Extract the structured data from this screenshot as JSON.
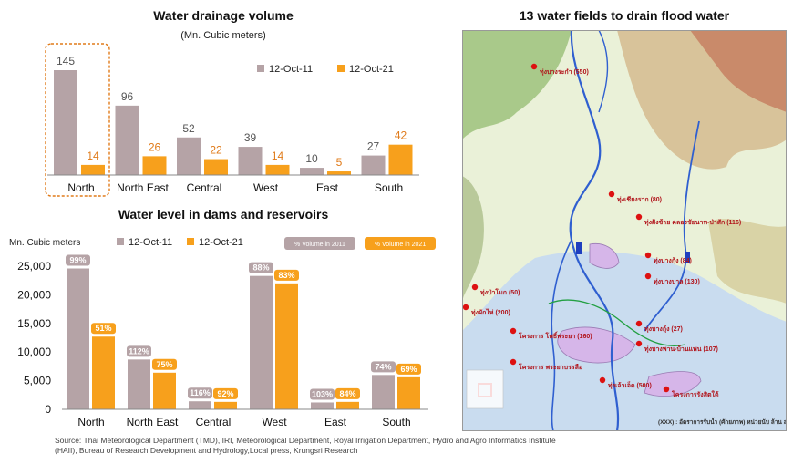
{
  "charts": [
    {
      "title": "Water drainage volume",
      "subtitle": "(Mn. Cubic meters)",
      "chart_data": {
        "type": "bar",
        "title": "Water drainage volume",
        "subtitle": "(Mn. Cubic meters)",
        "categories": [
          "North",
          "North East",
          "Central",
          "West",
          "East",
          "South"
        ],
        "series": [
          {
            "name": "12-Oct-11",
            "values": [
              145,
              96,
              52,
              39,
              10,
              27
            ],
            "color": "#b5a3a6"
          },
          {
            "name": "12-Oct-21",
            "values": [
              14,
              26,
              22,
              14,
              5,
              42
            ],
            "color": "#f7a01c"
          }
        ],
        "highlight_category": "North",
        "legend": "top-right",
        "grid": false
      }
    },
    {
      "title": "Water level in dams and reservoirs",
      "ylabel": "Mn. Cubic meters",
      "chart_data": {
        "type": "bar",
        "title": "Water level in dams and reservoirs",
        "ylabel": "Mn. Cubic meters",
        "categories": [
          "North",
          "North East",
          "Central",
          "West",
          "East",
          "South"
        ],
        "series": [
          {
            "name": "12-Oct-11",
            "values": [
              24600,
              8700,
              1400,
              23300,
              1200,
              6000
            ],
            "labels": [
              "99%",
              "112%",
              "116%",
              "88%",
              "103%",
              "74%"
            ],
            "color": "#b5a3a6"
          },
          {
            "name": "12-Oct-21",
            "values": [
              12700,
              6400,
              1300,
              22000,
              1300,
              5600
            ],
            "labels": [
              "51%",
              "75%",
              "92%",
              "83%",
              "84%",
              "69%"
            ],
            "color": "#f7a01c"
          }
        ],
        "label_legend": [
          "% Volume in 2011",
          "% Volume in 2021"
        ],
        "ylim": [
          0,
          25000
        ],
        "yticks": [
          "0",
          "5,000",
          "10,000",
          "15,000",
          "20,000",
          "25,000"
        ],
        "legend": "top",
        "grid": false
      }
    }
  ],
  "map": {
    "title": "13 water fields to drain flood water",
    "labels": [
      "ทุ่งบางระกำ (550)",
      "ทุ่งเชียงราก (80)",
      "ทุ่งฝั่งซ้าย คลองชัยนาท-ป่าสัก (116)",
      "ทุ่งป่าโมก (50)",
      "ทุ่งบางกุ้ง (84)",
      "ทุ่งบางบาล (130)",
      "ทุ่งผักไห่ (200)",
      "โครงการ โพธิ์พระยา (160)",
      "ทุ่งบางกุ้ง (27)",
      "ทุ่งบางพาน-บ้านแพน (107)",
      "โครงการ พระยาบรรลือ",
      "ทุ่งเจ้าเจ็ด (500)",
      "โครงการรังสิตใต้",
      "(XXX) : อัตราการรับน้ำ (ศักยภาพ) หน่วยนับ ล้าน ลบ.ม."
    ]
  },
  "source": "Source: Thai Meteorological Department (TMD), IRI, Meteorological Department, Royal Irrigation Department, Hydro and Agro Informatics Institute (HAII), Bureau of Research Development and Hydrology,Local press, Krungsri Research"
}
